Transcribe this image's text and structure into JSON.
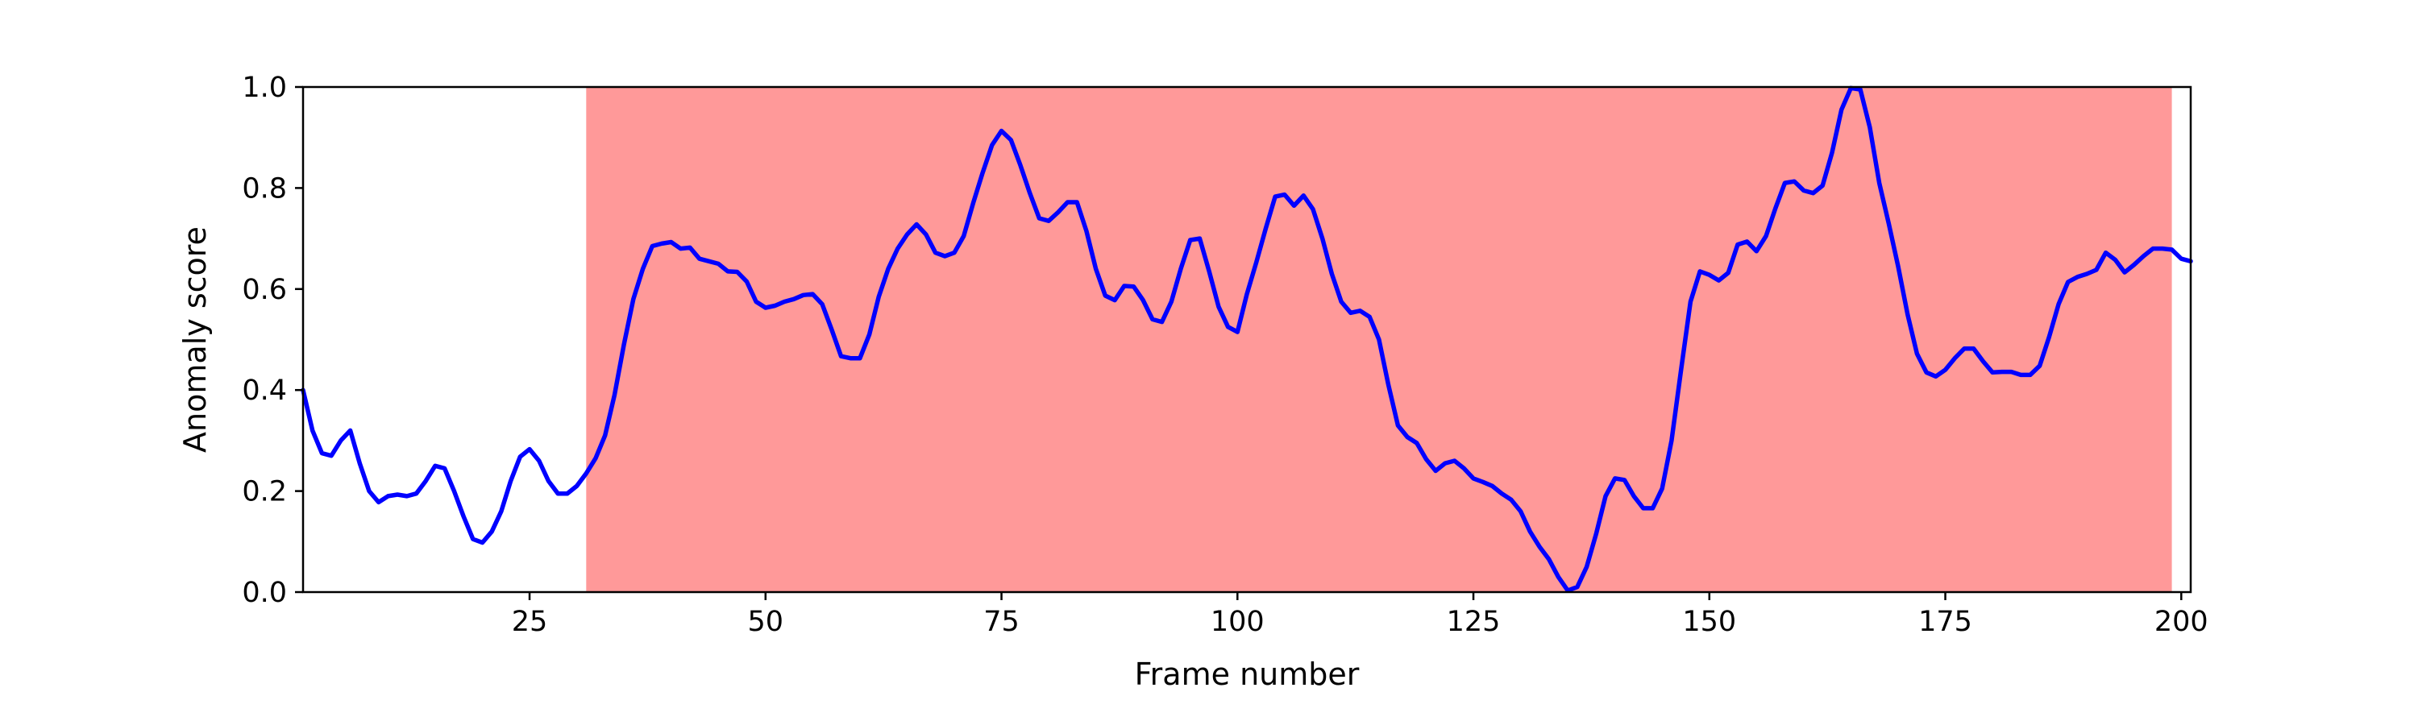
{
  "chart_data": {
    "type": "line",
    "title": "",
    "xlabel": "Frame number",
    "ylabel": "Anomaly score",
    "xlim": [
      1,
      201
    ],
    "ylim": [
      0,
      1
    ],
    "xticks": [
      25,
      50,
      75,
      100,
      125,
      150,
      175,
      200
    ],
    "yticks": [
      0.0,
      0.2,
      0.4,
      0.6,
      0.8,
      1.0
    ],
    "grid": false,
    "legend": "none",
    "highlight_region": {
      "x_start": 31,
      "x_end": 199,
      "color": "#ff9999"
    },
    "series": [
      {
        "color": "#0000ff",
        "x": [
          1,
          2,
          3,
          4,
          5,
          6,
          7,
          8,
          9,
          10,
          11,
          12,
          13,
          14,
          15,
          16,
          17,
          18,
          19,
          20,
          21,
          22,
          23,
          24,
          25,
          26,
          27,
          28,
          29,
          30,
          31,
          32,
          33,
          34,
          35,
          36,
          37,
          38,
          39,
          40,
          41,
          42,
          43,
          44,
          45,
          46,
          47,
          48,
          49,
          50,
          51,
          52,
          53,
          54,
          55,
          56,
          57,
          58,
          59,
          60,
          61,
          62,
          63,
          64,
          65,
          66,
          67,
          68,
          69,
          70,
          71,
          72,
          73,
          74,
          75,
          76,
          77,
          78,
          79,
          80,
          81,
          82,
          83,
          84,
          85,
          86,
          87,
          88,
          89,
          90,
          91,
          92,
          93,
          94,
          95,
          96,
          97,
          98,
          99,
          100,
          101,
          102,
          103,
          104,
          105,
          106,
          107,
          108,
          109,
          110,
          111,
          112,
          113,
          114,
          115,
          116,
          117,
          118,
          119,
          120,
          121,
          122,
          123,
          124,
          125,
          126,
          127,
          128,
          129,
          130,
          131,
          132,
          133,
          134,
          135,
          136,
          137,
          138,
          139,
          140,
          141,
          142,
          143,
          144,
          145,
          146,
          147,
          148,
          149,
          150,
          151,
          152,
          153,
          154,
          155,
          156,
          157,
          158,
          159,
          160,
          161,
          162,
          163,
          164,
          165,
          166,
          167,
          168,
          169,
          170,
          171,
          172,
          173,
          174,
          175,
          176,
          177,
          178,
          179,
          180,
          181,
          182,
          183,
          184,
          185,
          186,
          187,
          188,
          189,
          190,
          191,
          192,
          193,
          194,
          195,
          196,
          197,
          198,
          199,
          200,
          201
        ],
        "y": [
          0.4,
          0.32,
          0.275,
          0.27,
          0.3,
          0.32,
          0.255,
          0.2,
          0.178,
          0.19,
          0.193,
          0.19,
          0.195,
          0.22,
          0.25,
          0.245,
          0.2,
          0.15,
          0.105,
          0.098,
          0.12,
          0.16,
          0.22,
          0.268,
          0.283,
          0.26,
          0.22,
          0.195,
          0.195,
          0.21,
          0.235,
          0.265,
          0.31,
          0.39,
          0.49,
          0.58,
          0.64,
          0.685,
          0.69,
          0.693,
          0.68,
          0.682,
          0.66,
          0.655,
          0.65,
          0.635,
          0.634,
          0.615,
          0.575,
          0.563,
          0.567,
          0.575,
          0.58,
          0.588,
          0.59,
          0.57,
          0.52,
          0.467,
          0.463,
          0.463,
          0.51,
          0.585,
          0.64,
          0.68,
          0.708,
          0.728,
          0.708,
          0.672,
          0.665,
          0.672,
          0.705,
          0.77,
          0.83,
          0.885,
          0.913,
          0.895,
          0.845,
          0.79,
          0.74,
          0.735,
          0.752,
          0.772,
          0.772,
          0.715,
          0.64,
          0.587,
          0.578,
          0.606,
          0.605,
          0.578,
          0.54,
          0.535,
          0.575,
          0.64,
          0.697,
          0.7,
          0.635,
          0.565,
          0.525,
          0.515,
          0.59,
          0.653,
          0.72,
          0.783,
          0.787,
          0.765,
          0.785,
          0.758,
          0.7,
          0.63,
          0.575,
          0.553,
          0.557,
          0.545,
          0.5,
          0.41,
          0.33,
          0.307,
          0.295,
          0.263,
          0.24,
          0.255,
          0.26,
          0.245,
          0.225,
          0.218,
          0.21,
          0.195,
          0.183,
          0.16,
          0.12,
          0.09,
          0.065,
          0.03,
          0.003,
          0.01,
          0.05,
          0.115,
          0.19,
          0.225,
          0.222,
          0.19,
          0.166,
          0.166,
          0.205,
          0.3,
          0.44,
          0.575,
          0.635,
          0.628,
          0.617,
          0.632,
          0.688,
          0.694,
          0.675,
          0.705,
          0.76,
          0.81,
          0.813,
          0.795,
          0.79,
          0.805,
          0.87,
          0.955,
          0.998,
          0.995,
          0.92,
          0.81,
          0.73,
          0.645,
          0.55,
          0.472,
          0.435,
          0.427,
          0.44,
          0.463,
          0.482,
          0.482,
          0.457,
          0.435,
          0.436,
          0.436,
          0.43,
          0.43,
          0.448,
          0.505,
          0.57,
          0.614,
          0.624,
          0.63,
          0.638,
          0.672,
          0.658,
          0.633,
          0.648,
          0.665,
          0.68,
          0.68,
          0.678,
          0.66,
          0.655
        ]
      }
    ]
  }
}
